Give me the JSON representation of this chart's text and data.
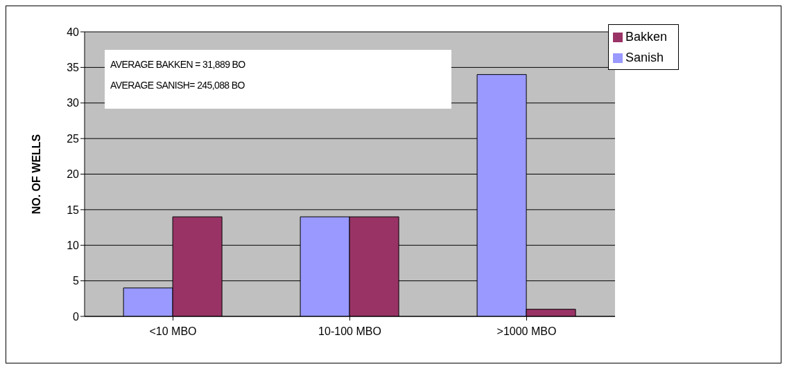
{
  "chart_data": {
    "type": "bar",
    "ylabel": "NO. OF WELLS",
    "categories": [
      "<10 MBO",
      "10-100 MBO",
      ">1000 MBO"
    ],
    "series": [
      {
        "name": "Sanish",
        "color": "#9999ff",
        "values": [
          4,
          14,
          34
        ]
      },
      {
        "name": "Bakken",
        "color": "#993366",
        "values": [
          14,
          14,
          1
        ]
      }
    ],
    "ylim": [
      0,
      40
    ],
    "yticks": [
      0,
      5,
      10,
      15,
      20,
      25,
      30,
      35,
      40
    ],
    "grid": "y",
    "legend": "top right",
    "annotations": [
      "AVERAGE BAKKEN = 31,889 BO",
      "AVERAGE SANISH= 245,088 BO"
    ]
  }
}
